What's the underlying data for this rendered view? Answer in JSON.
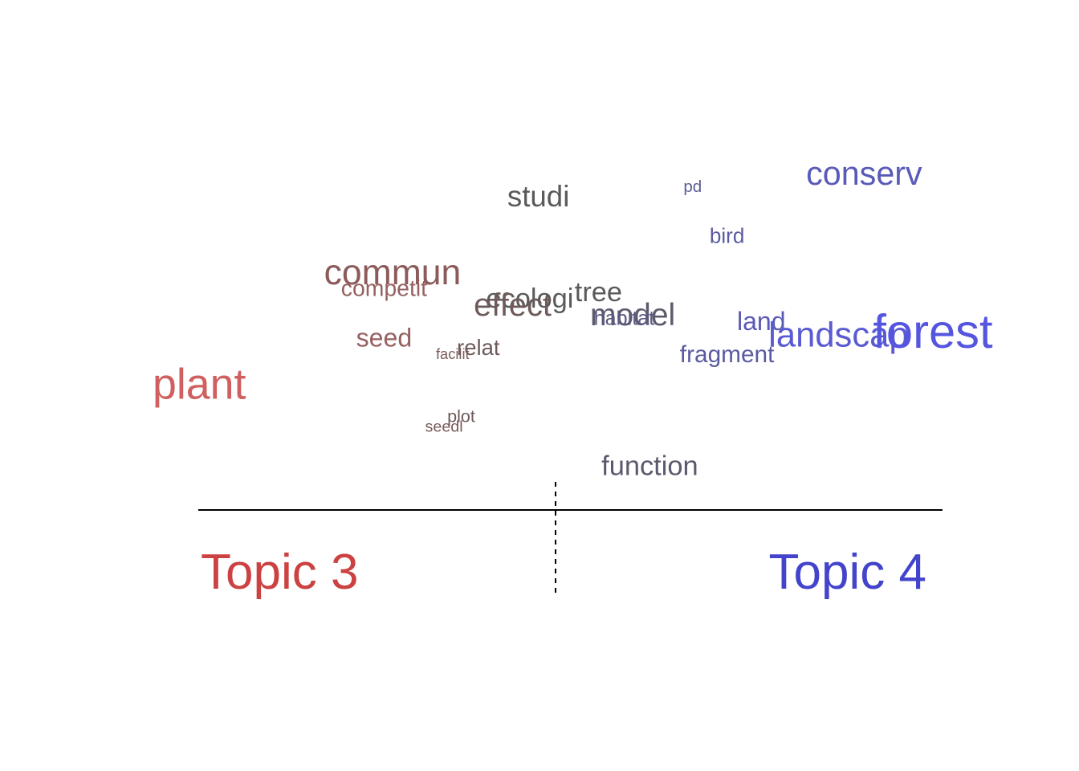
{
  "chart_data": {
    "type": "scatter",
    "subtype": "topic-contrast word plot",
    "title": "",
    "xlabel": "",
    "ylabel": "",
    "xlim": [
      0,
      1
    ],
    "ylim": [
      0,
      1
    ],
    "split_x": 0.47,
    "topics": [
      {
        "name": "Topic 3",
        "color": "#cc4141",
        "side": "left"
      },
      {
        "name": "Topic 4",
        "color": "#4343cc",
        "side": "right"
      }
    ],
    "points": [
      {
        "word": "conserv",
        "x": 0.83,
        "y": 0.97,
        "weight": 0.55,
        "color": "#5a5ab8"
      },
      {
        "word": "pd",
        "x": 0.63,
        "y": 0.93,
        "weight": 0.1,
        "color": "#5a5a96"
      },
      {
        "word": "studi",
        "x": 0.45,
        "y": 0.9,
        "weight": 0.45,
        "color": "#5a5a5a"
      },
      {
        "word": "bird",
        "x": 0.67,
        "y": 0.78,
        "weight": 0.22,
        "color": "#5a5aa0"
      },
      {
        "word": "commun",
        "x": 0.28,
        "y": 0.67,
        "weight": 0.62,
        "color": "#8c5a5a"
      },
      {
        "word": "competit",
        "x": 0.27,
        "y": 0.62,
        "weight": 0.27,
        "color": "#966060"
      },
      {
        "word": "ecologi",
        "x": 0.44,
        "y": 0.59,
        "weight": 0.4,
        "color": "#5a5a5a"
      },
      {
        "word": "tree",
        "x": 0.52,
        "y": 0.61,
        "weight": 0.4,
        "color": "#5a5a5a"
      },
      {
        "word": "effect",
        "x": 0.42,
        "y": 0.57,
        "weight": 0.52,
        "color": "#6e5a5a"
      },
      {
        "word": "model",
        "x": 0.56,
        "y": 0.54,
        "weight": 0.5,
        "color": "#5e5a6e"
      },
      {
        "word": "habitat",
        "x": 0.55,
        "y": 0.53,
        "weight": 0.2,
        "color": "#5a5a82"
      },
      {
        "word": "land",
        "x": 0.71,
        "y": 0.52,
        "weight": 0.35,
        "color": "#5a5ab4"
      },
      {
        "word": "landscap",
        "x": 0.8,
        "y": 0.48,
        "weight": 0.6,
        "color": "#5a5ad2"
      },
      {
        "word": "forest",
        "x": 0.98,
        "y": 0.49,
        "weight": 0.95,
        "color": "#5555e0"
      },
      {
        "word": "seed",
        "x": 0.27,
        "y": 0.47,
        "weight": 0.35,
        "color": "#966060"
      },
      {
        "word": "relat",
        "x": 0.38,
        "y": 0.44,
        "weight": 0.25,
        "color": "#6e5a5a"
      },
      {
        "word": "facilit",
        "x": 0.35,
        "y": 0.42,
        "weight": 0.05,
        "color": "#7a5a5a"
      },
      {
        "word": "fragment",
        "x": 0.67,
        "y": 0.42,
        "weight": 0.3,
        "color": "#5a5aa0"
      },
      {
        "word": "plant",
        "x": 0.0,
        "y": 0.33,
        "weight": 0.82,
        "color": "#d06060"
      },
      {
        "word": "plot",
        "x": 0.36,
        "y": 0.23,
        "weight": 0.12,
        "color": "#6e5a5a"
      },
      {
        "word": "seedl",
        "x": 0.34,
        "y": 0.2,
        "weight": 0.08,
        "color": "#7a5a5a"
      },
      {
        "word": "function",
        "x": 0.58,
        "y": 0.08,
        "weight": 0.4,
        "color": "#5a5a6e"
      }
    ]
  }
}
